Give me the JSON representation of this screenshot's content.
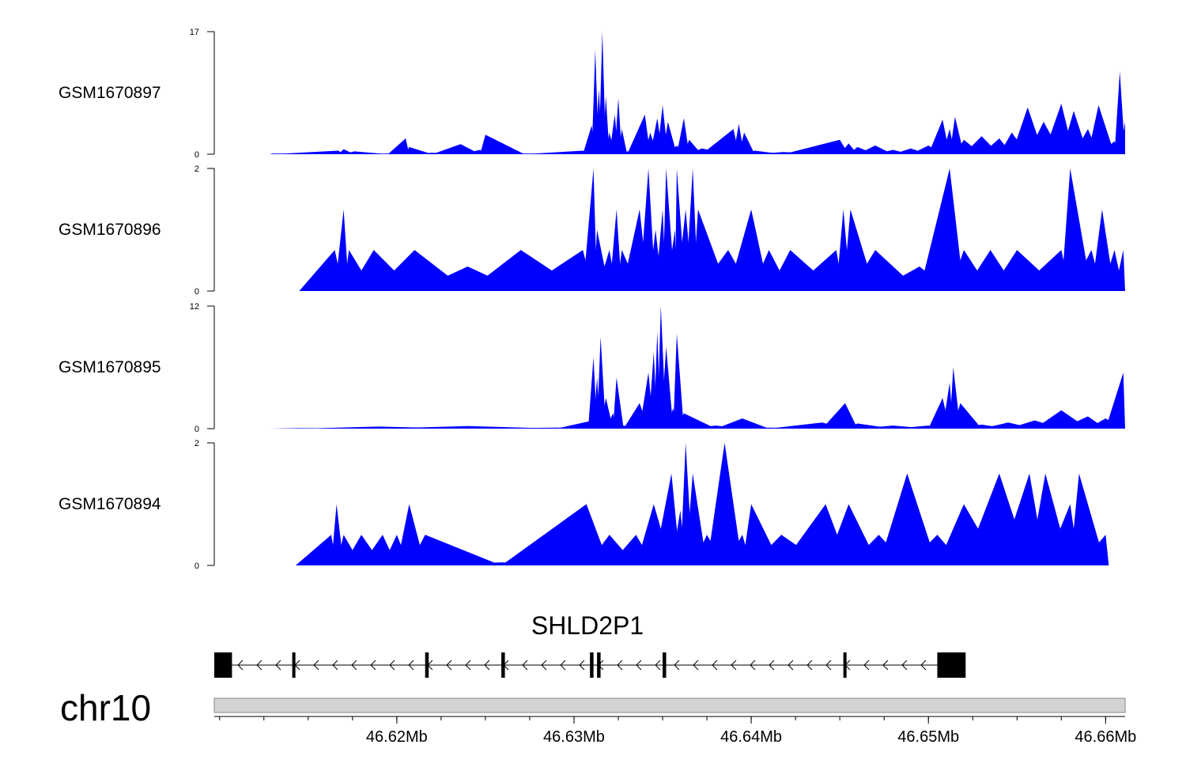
{
  "chart_data": {
    "type": "area",
    "title": "",
    "genome_region": {
      "chromosome": "chr10",
      "start_mb": 46.6097,
      "end_mb": 46.6611,
      "axis_tick_labels": [
        "46.62Mb",
        "46.63Mb",
        "46.64Mb",
        "46.65Mb",
        "46.66Mb"
      ],
      "axis_tick_values_mb": [
        46.62,
        46.63,
        46.64,
        46.65,
        46.66
      ]
    },
    "colors": {
      "track_fill": "#0000ff",
      "axis": "#000000",
      "ideogram": "#d3d3d3",
      "gene": "#000000"
    },
    "tracks": [
      {
        "name": "GSM1670897",
        "ylim": [
          0,
          17
        ],
        "y_tick_labels": [
          "17",
          "0"
        ],
        "peaks": [
          {
            "pos": 46.613,
            "value": 0.1
          },
          {
            "pos": 46.6167,
            "value": 0.5
          },
          {
            "pos": 46.617,
            "value": 0.7
          },
          {
            "pos": 46.6176,
            "value": 0.4
          },
          {
            "pos": 46.6195,
            "value": 0.1
          },
          {
            "pos": 46.6205,
            "value": 2.2
          },
          {
            "pos": 46.6207,
            "value": 1.0
          },
          {
            "pos": 46.622,
            "value": 0.2
          },
          {
            "pos": 46.6236,
            "value": 1.4
          },
          {
            "pos": 46.6247,
            "value": 0.6
          },
          {
            "pos": 46.625,
            "value": 2.7
          },
          {
            "pos": 46.6272,
            "value": 0.1
          },
          {
            "pos": 46.6305,
            "value": 0.5
          },
          {
            "pos": 46.631,
            "value": 4.0
          },
          {
            "pos": 46.6312,
            "value": 14.5
          },
          {
            "pos": 46.6314,
            "value": 9.0
          },
          {
            "pos": 46.6316,
            "value": 17.0
          },
          {
            "pos": 46.6318,
            "value": 8.0
          },
          {
            "pos": 46.632,
            "value": 3.0
          },
          {
            "pos": 46.6323,
            "value": 5.5
          },
          {
            "pos": 46.6325,
            "value": 7.8
          },
          {
            "pos": 46.6327,
            "value": 3.5
          },
          {
            "pos": 46.633,
            "value": 0.4
          },
          {
            "pos": 46.634,
            "value": 5.5
          },
          {
            "pos": 46.6343,
            "value": 3.0
          },
          {
            "pos": 46.6347,
            "value": 5.0
          },
          {
            "pos": 46.635,
            "value": 6.8
          },
          {
            "pos": 46.6353,
            "value": 4.5
          },
          {
            "pos": 46.6358,
            "value": 1.2
          },
          {
            "pos": 46.6362,
            "value": 5.0
          },
          {
            "pos": 46.6365,
            "value": 2.0
          },
          {
            "pos": 46.6372,
            "value": 0.8
          },
          {
            "pos": 46.639,
            "value": 3.5
          },
          {
            "pos": 46.6393,
            "value": 4.2
          },
          {
            "pos": 46.6396,
            "value": 3.0
          },
          {
            "pos": 46.6402,
            "value": 0.5
          },
          {
            "pos": 46.6418,
            "value": 0.3
          },
          {
            "pos": 46.645,
            "value": 2.0
          },
          {
            "pos": 46.6455,
            "value": 1.5
          },
          {
            "pos": 46.646,
            "value": 1.0
          },
          {
            "pos": 46.647,
            "value": 1.2
          },
          {
            "pos": 46.648,
            "value": 0.6
          },
          {
            "pos": 46.649,
            "value": 0.8
          },
          {
            "pos": 46.65,
            "value": 1.2
          },
          {
            "pos": 46.6508,
            "value": 4.8
          },
          {
            "pos": 46.6512,
            "value": 3.5
          },
          {
            "pos": 46.6515,
            "value": 5.2
          },
          {
            "pos": 46.652,
            "value": 2.0
          },
          {
            "pos": 46.653,
            "value": 2.5
          },
          {
            "pos": 46.654,
            "value": 2.2
          },
          {
            "pos": 46.6547,
            "value": 3.0
          },
          {
            "pos": 46.6556,
            "value": 6.5
          },
          {
            "pos": 46.6565,
            "value": 4.5
          },
          {
            "pos": 46.6575,
            "value": 7.0
          },
          {
            "pos": 46.6582,
            "value": 6.0
          },
          {
            "pos": 46.659,
            "value": 3.5
          },
          {
            "pos": 46.6596,
            "value": 6.8
          },
          {
            "pos": 46.6605,
            "value": 1.8
          },
          {
            "pos": 46.6608,
            "value": 11.5
          },
          {
            "pos": 46.6611,
            "value": 4.5
          }
        ]
      },
      {
        "name": "GSM1670896",
        "ylim": [
          0,
          2
        ],
        "y_tick_labels": [
          "2",
          "0"
        ],
        "peaks": [
          {
            "pos": 46.6165,
            "value": 0.67
          },
          {
            "pos": 46.617,
            "value": 1.33
          },
          {
            "pos": 46.6173,
            "value": 0.67
          },
          {
            "pos": 46.6187,
            "value": 0.67
          },
          {
            "pos": 46.621,
            "value": 0.67
          },
          {
            "pos": 46.624,
            "value": 0.4
          },
          {
            "pos": 46.627,
            "value": 0.67
          },
          {
            "pos": 46.6305,
            "value": 0.67
          },
          {
            "pos": 46.6311,
            "value": 2.0
          },
          {
            "pos": 46.6313,
            "value": 1.0
          },
          {
            "pos": 46.632,
            "value": 0.67
          },
          {
            "pos": 46.6324,
            "value": 1.33
          },
          {
            "pos": 46.6327,
            "value": 0.67
          },
          {
            "pos": 46.6337,
            "value": 1.33
          },
          {
            "pos": 46.6342,
            "value": 2.0
          },
          {
            "pos": 46.6346,
            "value": 1.0
          },
          {
            "pos": 46.635,
            "value": 1.33
          },
          {
            "pos": 46.6352,
            "value": 2.0
          },
          {
            "pos": 46.6357,
            "value": 1.0
          },
          {
            "pos": 46.6358,
            "value": 2.0
          },
          {
            "pos": 46.6363,
            "value": 1.33
          },
          {
            "pos": 46.6367,
            "value": 2.0
          },
          {
            "pos": 46.637,
            "value": 1.33
          },
          {
            "pos": 46.6387,
            "value": 0.67
          },
          {
            "pos": 46.64,
            "value": 1.33
          },
          {
            "pos": 46.641,
            "value": 0.67
          },
          {
            "pos": 46.6422,
            "value": 0.67
          },
          {
            "pos": 46.6448,
            "value": 0.67
          },
          {
            "pos": 46.6452,
            "value": 1.33
          },
          {
            "pos": 46.6456,
            "value": 1.33
          },
          {
            "pos": 46.647,
            "value": 0.67
          },
          {
            "pos": 46.6495,
            "value": 0.4
          },
          {
            "pos": 46.6512,
            "value": 2.0
          },
          {
            "pos": 46.652,
            "value": 0.67
          },
          {
            "pos": 46.6535,
            "value": 0.67
          },
          {
            "pos": 46.655,
            "value": 0.67
          },
          {
            "pos": 46.6575,
            "value": 0.67
          },
          {
            "pos": 46.658,
            "value": 2.0
          },
          {
            "pos": 46.6592,
            "value": 0.67
          },
          {
            "pos": 46.6598,
            "value": 1.33
          },
          {
            "pos": 46.6605,
            "value": 0.67
          },
          {
            "pos": 46.661,
            "value": 0.67
          }
        ]
      },
      {
        "name": "GSM1670895",
        "ylim": [
          0,
          12
        ],
        "y_tick_labels": [
          "12",
          "0"
        ],
        "peaks": [
          {
            "pos": 46.6145,
            "value": 0.05
          },
          {
            "pos": 46.619,
            "value": 0.2
          },
          {
            "pos": 46.624,
            "value": 0.25
          },
          {
            "pos": 46.629,
            "value": 0.1
          },
          {
            "pos": 46.6308,
            "value": 0.7
          },
          {
            "pos": 46.6311,
            "value": 7.0
          },
          {
            "pos": 46.6313,
            "value": 5.0
          },
          {
            "pos": 46.6315,
            "value": 9.0
          },
          {
            "pos": 46.6318,
            "value": 3.0
          },
          {
            "pos": 46.6322,
            "value": 1.5
          },
          {
            "pos": 46.6324,
            "value": 5.0
          },
          {
            "pos": 46.6328,
            "value": 0.3
          },
          {
            "pos": 46.6337,
            "value": 2.5
          },
          {
            "pos": 46.6342,
            "value": 5.5
          },
          {
            "pos": 46.6345,
            "value": 7.5
          },
          {
            "pos": 46.6347,
            "value": 9.5
          },
          {
            "pos": 46.6349,
            "value": 12.0
          },
          {
            "pos": 46.6352,
            "value": 8.0
          },
          {
            "pos": 46.6356,
            "value": 2.0
          },
          {
            "pos": 46.6358,
            "value": 9.3
          },
          {
            "pos": 46.6362,
            "value": 1.5
          },
          {
            "pos": 46.638,
            "value": 0.3
          },
          {
            "pos": 46.6395,
            "value": 1.0
          },
          {
            "pos": 46.641,
            "value": 0.1
          },
          {
            "pos": 46.644,
            "value": 0.6
          },
          {
            "pos": 46.6453,
            "value": 2.5
          },
          {
            "pos": 46.646,
            "value": 0.5
          },
          {
            "pos": 46.648,
            "value": 0.3
          },
          {
            "pos": 46.65,
            "value": 0.3
          },
          {
            "pos": 46.6508,
            "value": 3.0
          },
          {
            "pos": 46.6512,
            "value": 4.5
          },
          {
            "pos": 46.6514,
            "value": 6.0
          },
          {
            "pos": 46.6518,
            "value": 2.5
          },
          {
            "pos": 46.653,
            "value": 0.4
          },
          {
            "pos": 46.6545,
            "value": 0.6
          },
          {
            "pos": 46.656,
            "value": 0.8
          },
          {
            "pos": 46.6575,
            "value": 1.8
          },
          {
            "pos": 46.659,
            "value": 1.2
          },
          {
            "pos": 46.66,
            "value": 1.0
          },
          {
            "pos": 46.661,
            "value": 5.5
          }
        ]
      },
      {
        "name": "GSM1670894",
        "ylim": [
          0,
          2
        ],
        "y_tick_labels": [
          "2",
          "0"
        ],
        "peaks": [
          {
            "pos": 46.6163,
            "value": 0.5
          },
          {
            "pos": 46.6166,
            "value": 1.0
          },
          {
            "pos": 46.617,
            "value": 0.5
          },
          {
            "pos": 46.618,
            "value": 0.5
          },
          {
            "pos": 46.6192,
            "value": 0.5
          },
          {
            "pos": 46.62,
            "value": 0.5
          },
          {
            "pos": 46.6207,
            "value": 1.0
          },
          {
            "pos": 46.6216,
            "value": 0.5
          },
          {
            "pos": 46.6259,
            "value": 0.05
          },
          {
            "pos": 46.6307,
            "value": 1.0
          },
          {
            "pos": 46.632,
            "value": 0.5
          },
          {
            "pos": 46.6335,
            "value": 0.5
          },
          {
            "pos": 46.6345,
            "value": 1.0
          },
          {
            "pos": 46.6355,
            "value": 1.5
          },
          {
            "pos": 46.636,
            "value": 0.9
          },
          {
            "pos": 46.6363,
            "value": 2.0
          },
          {
            "pos": 46.6367,
            "value": 1.5
          },
          {
            "pos": 46.6375,
            "value": 0.5
          },
          {
            "pos": 46.6385,
            "value": 2.0
          },
          {
            "pos": 46.6395,
            "value": 0.5
          },
          {
            "pos": 46.64,
            "value": 1.0
          },
          {
            "pos": 46.6417,
            "value": 0.5
          },
          {
            "pos": 46.6442,
            "value": 1.0
          },
          {
            "pos": 46.6455,
            "value": 1.0
          },
          {
            "pos": 46.6472,
            "value": 0.5
          },
          {
            "pos": 46.6488,
            "value": 1.5
          },
          {
            "pos": 46.6505,
            "value": 0.5
          },
          {
            "pos": 46.652,
            "value": 1.0
          },
          {
            "pos": 46.654,
            "value": 1.5
          },
          {
            "pos": 46.6557,
            "value": 1.5
          },
          {
            "pos": 46.6566,
            "value": 1.5
          },
          {
            "pos": 46.658,
            "value": 1.0
          },
          {
            "pos": 46.6585,
            "value": 1.5
          },
          {
            "pos": 46.66,
            "value": 0.5
          }
        ]
      }
    ],
    "gene": {
      "name": "SHLD2P1",
      "strand": "-",
      "exons_mb": [
        [
          46.6097,
          46.6107
        ],
        [
          46.6141,
          46.6142
        ],
        [
          46.6216,
          46.6218
        ],
        [
          46.6259,
          46.6261
        ],
        [
          46.6309,
          46.6311
        ],
        [
          46.6313,
          46.6315
        ],
        [
          46.635,
          46.6352
        ],
        [
          46.6452,
          46.6453
        ],
        [
          46.6505,
          46.6521
        ]
      ],
      "span_mb": [
        46.6097,
        46.6521
      ]
    }
  }
}
